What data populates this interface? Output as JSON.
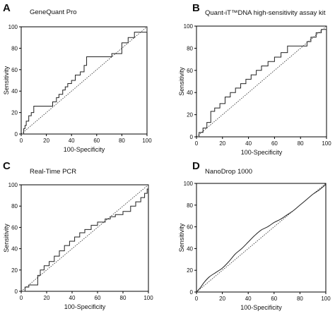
{
  "chart_data": [
    {
      "panel": "A",
      "type": "line",
      "title": "GeneQuant Pro",
      "xlabel": "100-Specificity",
      "ylabel": "Sensitivity",
      "xlim": [
        0,
        100
      ],
      "ylim": [
        0,
        100
      ],
      "xticks": [
        0,
        20,
        40,
        60,
        80,
        100
      ],
      "yticks": [
        0,
        20,
        40,
        60,
        80,
        100
      ],
      "series": [
        {
          "type": "step",
          "x": [
            0,
            2,
            2,
            3,
            3,
            4,
            4,
            6,
            6,
            8,
            8,
            10,
            10,
            25,
            25,
            28,
            28,
            30,
            30,
            33,
            33,
            35,
            35,
            37,
            37,
            40,
            40,
            43,
            43,
            47,
            47,
            50,
            50,
            52,
            52,
            72,
            72,
            80,
            80,
            85,
            85,
            90,
            90,
            100,
            100
          ],
          "y": [
            0,
            0,
            5,
            5,
            8,
            8,
            12,
            12,
            17,
            17,
            20,
            20,
            26,
            26,
            30,
            30,
            34,
            34,
            37,
            37,
            41,
            41,
            44,
            44,
            47,
            47,
            50,
            50,
            55,
            55,
            58,
            58,
            64,
            64,
            72,
            72,
            75,
            75,
            85,
            85,
            90,
            90,
            95,
            95,
            100
          ]
        },
        {
          "type": "reference",
          "x": [
            0,
            100
          ],
          "y": [
            0,
            100
          ]
        }
      ]
    },
    {
      "panel": "B",
      "type": "line",
      "title": "Quant-iT™DNA high-sensitivity assay kit",
      "xlabel": "100-Specificity",
      "ylabel": "Sensitivity",
      "xlim": [
        0,
        100
      ],
      "ylim": [
        0,
        100
      ],
      "xticks": [
        0,
        20,
        40,
        60,
        80,
        100
      ],
      "yticks": [
        0,
        20,
        40,
        60,
        80,
        100
      ],
      "series": [
        {
          "type": "step",
          "x": [
            0,
            2,
            2,
            5,
            5,
            8,
            8,
            11,
            11,
            14,
            14,
            18,
            18,
            22,
            22,
            26,
            26,
            30,
            30,
            34,
            34,
            38,
            38,
            42,
            42,
            46,
            46,
            50,
            50,
            55,
            55,
            60,
            60,
            65,
            65,
            70,
            70,
            85,
            85,
            88,
            88,
            92,
            92,
            96,
            96,
            100,
            100
          ],
          "y": [
            0,
            0,
            4,
            4,
            8,
            8,
            13,
            13,
            23,
            23,
            26,
            26,
            30,
            30,
            36,
            36,
            40,
            40,
            44,
            44,
            48,
            48,
            52,
            52,
            56,
            56,
            60,
            60,
            64,
            64,
            68,
            68,
            72,
            72,
            76,
            76,
            82,
            82,
            86,
            86,
            90,
            90,
            94,
            94,
            97,
            97,
            100
          ]
        },
        {
          "type": "reference",
          "x": [
            0,
            100
          ],
          "y": [
            0,
            100
          ]
        }
      ]
    },
    {
      "panel": "C",
      "type": "line",
      "title": "Real-Time PCR",
      "xlabel": "100-Specificity",
      "ylabel": "Sensitivity",
      "xlim": [
        0,
        100
      ],
      "ylim": [
        0,
        100
      ],
      "xticks": [
        0,
        20,
        40,
        60,
        80,
        100
      ],
      "yticks": [
        0,
        20,
        40,
        60,
        80,
        100
      ],
      "series": [
        {
          "type": "step",
          "x": [
            0,
            3,
            3,
            6,
            6,
            13,
            13,
            15,
            15,
            18,
            18,
            22,
            22,
            26,
            26,
            30,
            30,
            34,
            34,
            38,
            38,
            42,
            42,
            46,
            46,
            50,
            50,
            55,
            55,
            60,
            60,
            66,
            66,
            70,
            70,
            74,
            74,
            80,
            80,
            86,
            86,
            90,
            90,
            94,
            94,
            97,
            97,
            99,
            99,
            100,
            100
          ],
          "y": [
            0,
            0,
            4,
            4,
            6,
            6,
            15,
            15,
            20,
            20,
            24,
            24,
            28,
            28,
            33,
            33,
            38,
            38,
            43,
            43,
            47,
            47,
            51,
            51,
            55,
            55,
            58,
            58,
            62,
            62,
            65,
            65,
            68,
            68,
            70,
            70,
            72,
            72,
            75,
            75,
            80,
            80,
            84,
            84,
            88,
            88,
            92,
            92,
            96,
            96,
            100
          ]
        },
        {
          "type": "reference",
          "x": [
            0,
            100
          ],
          "y": [
            0,
            100
          ]
        }
      ]
    },
    {
      "panel": "D",
      "type": "line",
      "title": "NanoDrop 1000",
      "xlabel": "100-Specificity",
      "ylabel": "Sensitivity",
      "xlim": [
        0,
        100
      ],
      "ylim": [
        0,
        100
      ],
      "xticks": [
        0,
        20,
        40,
        60,
        80,
        100
      ],
      "yticks": [
        0,
        20,
        40,
        60,
        80,
        100
      ],
      "series": [
        {
          "type": "smooth",
          "x": [
            0,
            3,
            6,
            10,
            15,
            20,
            25,
            30,
            35,
            40,
            45,
            50,
            55,
            60,
            65,
            70,
            75,
            80,
            85,
            90,
            95,
            100
          ],
          "y": [
            0,
            4,
            9,
            14,
            18,
            22,
            28,
            35,
            40,
            46,
            52,
            57,
            60,
            64,
            67,
            71,
            75,
            80,
            85,
            90,
            94,
            99
          ]
        },
        {
          "type": "reference",
          "x": [
            0,
            100
          ],
          "y": [
            0,
            100
          ]
        }
      ]
    }
  ]
}
